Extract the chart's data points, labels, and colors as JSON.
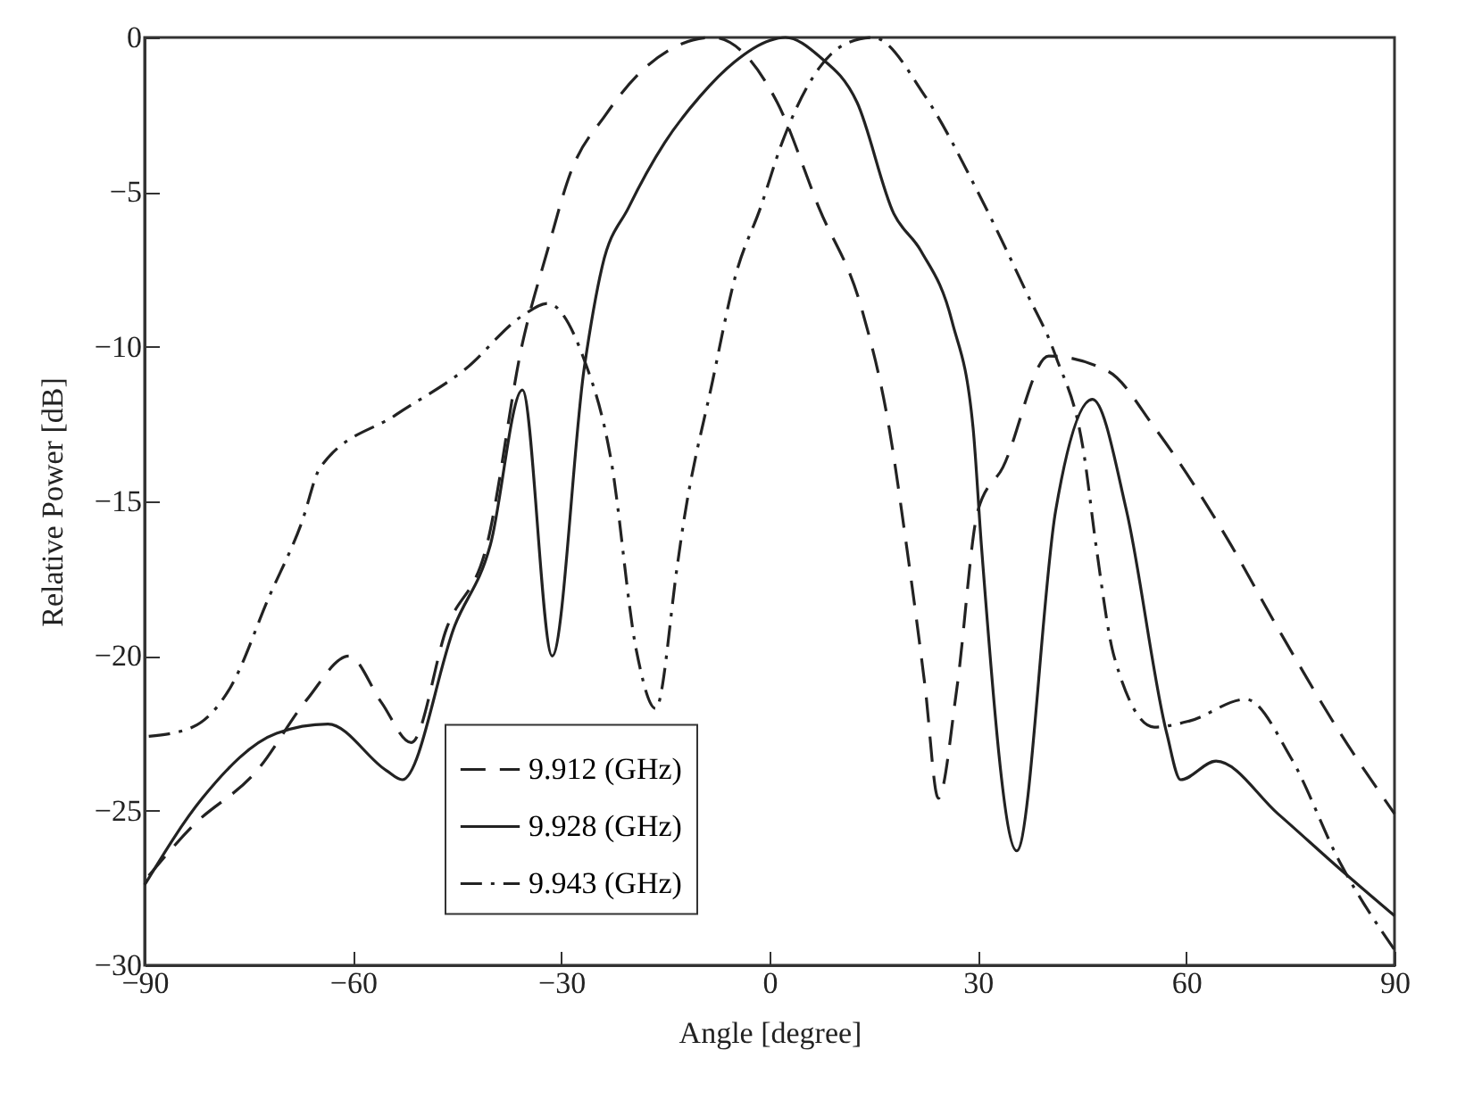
{
  "chart_data": {
    "type": "line",
    "xlabel": "Angle [degree]",
    "ylabel": "Relative Power [dB]",
    "xlim": [
      -90,
      90
    ],
    "xticks": [
      -90,
      -60,
      -30,
      0,
      30,
      60,
      90
    ],
    "ylim": [
      -30,
      0
    ],
    "yticks": [
      -30,
      -25,
      -20,
      -15,
      -10,
      -5,
      0
    ],
    "grid": false,
    "legend": "bottom",
    "marker": "none",
    "series": [
      {
        "name": "9.912 (GHz)",
        "color": "#222222",
        "line_style": "dashed",
        "x": [
          -89.4,
          -83.1,
          -73.8,
          -66.6,
          -60.6,
          -55.9,
          -51.6,
          -46.5,
          -40.7,
          -35.6,
          -32,
          -28.7,
          -23.6,
          -18.5,
          -8.2,
          1.1,
          7.1,
          13.3,
          17.2,
          19.7,
          22.4,
          24.3,
          27,
          30,
          33.6,
          40.2,
          48.8,
          55.4,
          65.9,
          73.2,
          82.2,
          90
        ],
        "values": [
          -27.1,
          -25.5,
          -23.7,
          -21.4,
          -20,
          -21.5,
          -22.8,
          -19.1,
          -16.4,
          -9.9,
          -6.9,
          -4.4,
          -2.5,
          -1.1,
          0,
          -2.1,
          -5.5,
          -8.8,
          -12.6,
          -16.4,
          -21,
          -24.6,
          -21,
          -15.3,
          -13.9,
          -10.3,
          -10.8,
          -12.6,
          -16.2,
          -19.1,
          -22.5,
          -25.1
        ]
      },
      {
        "name": "9.928 (GHz)",
        "color": "#222222",
        "line_style": "solid",
        "x": [
          -90,
          -81.7,
          -71,
          -63.6,
          -55.2,
          -52.9,
          -45.3,
          -40.2,
          -35.6,
          -31.3,
          -26.7,
          -24.1,
          -20.3,
          -15.1,
          -10,
          -5.1,
          0,
          2.3,
          7.1,
          12.6,
          17.9,
          21.8,
          26.3,
          29.3,
          30.5,
          35.6,
          41.2,
          46.5,
          51.4,
          57.2,
          59.2,
          64.3,
          73.2,
          82.2,
          90
        ],
        "values": [
          -27.4,
          -24.6,
          -22.5,
          -22.2,
          -23.7,
          -24,
          -19,
          -16.4,
          -11.4,
          -20,
          -10.7,
          -7.4,
          -5.5,
          -3.4,
          -1.9,
          -0.8,
          -0.1,
          0,
          -0.6,
          -2.1,
          -5.7,
          -6.9,
          -9.2,
          -12.6,
          -16.4,
          -26.3,
          -15.3,
          -11.7,
          -15.3,
          -22.5,
          -24,
          -23.4,
          -25.1,
          -26.9,
          -28.4
        ]
      },
      {
        "name": "9.943 (GHz)",
        "color": "#222222",
        "line_style": "dashdot",
        "x": [
          -89.4,
          -83.1,
          -77.6,
          -72.1,
          -67.4,
          -64.7,
          -53.8,
          -43.7,
          -35.6,
          -32,
          -26.9,
          -22.8,
          -19.2,
          -16.4,
          -13.3,
          -12.6,
          -8.2,
          -4.9,
          -1.3,
          1.8,
          7.1,
          11,
          14.9,
          22.4,
          30,
          36.9,
          41.2,
          45.3,
          47,
          49.6,
          55.4,
          60.5,
          68.6,
          75.1,
          82.2,
          90
        ],
        "values": [
          -22.6,
          -22.3,
          -21,
          -18.1,
          -15.7,
          -13.9,
          -12.2,
          -10.7,
          -9,
          -8.6,
          -10.3,
          -13.7,
          -19.8,
          -21.7,
          -17.1,
          -16,
          -11.1,
          -7.7,
          -5.5,
          -3.4,
          -1,
          -0.2,
          0,
          -1.9,
          -5,
          -8.2,
          -10.3,
          -13.5,
          -16.4,
          -20,
          -22.3,
          -22.1,
          -21.4,
          -23.3,
          -26.7,
          -29.5
        ]
      }
    ]
  }
}
